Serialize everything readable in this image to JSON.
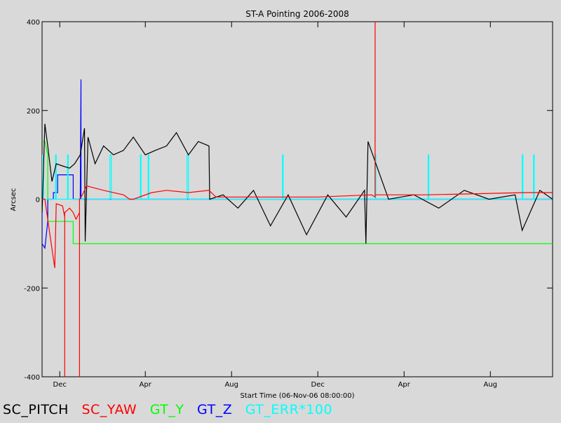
{
  "chart_data": {
    "type": "line",
    "title": "ST-A Pointing 2006-2008",
    "xlabel": "Start Time (06-Nov-06 08:00:00)",
    "ylabel": "Arcsec",
    "xlim": [
      "2006-11-06",
      "2008-10-28"
    ],
    "ylim": [
      -400,
      400
    ],
    "yticks": [
      -400,
      -200,
      0,
      200,
      400
    ],
    "xticks": [
      {
        "date": "2006-12-01",
        "label": "Dec"
      },
      {
        "date": "2007-04-01",
        "label": "Apr"
      },
      {
        "date": "2007-08-01",
        "label": "Aug"
      },
      {
        "date": "2007-12-01",
        "label": "Dec"
      },
      {
        "date": "2008-04-01",
        "label": "Apr"
      },
      {
        "date": "2008-08-01",
        "label": "Aug"
      }
    ],
    "grid": false,
    "legend_position": "bottom",
    "background": "#d9d9d9",
    "series": [
      {
        "name": "GT_Y",
        "color": "#00ff00",
        "x": [
          "2006-11-06",
          "2006-11-10",
          "2006-11-14",
          "2006-11-14",
          "2006-12-20",
          "2006-12-20",
          "2007-01-06",
          "2007-01-06",
          "2008-10-28"
        ],
        "y": [
          130,
          130,
          100,
          -50,
          -50,
          -100,
          -100,
          -100,
          -100
        ]
      },
      {
        "name": "GT_Z",
        "color": "#0000ff",
        "x": [
          "2006-11-06",
          "2006-11-06",
          "2006-11-10",
          "2006-11-14",
          "2006-11-14",
          "2006-11-22",
          "2006-11-22",
          "2006-11-28",
          "2006-11-28",
          "2006-12-20",
          "2006-12-20",
          "2006-12-30",
          "2006-12-31",
          "2006-12-31",
          "2007-01-02",
          "2007-01-02",
          "2008-10-28"
        ],
        "y": [
          -20,
          -100,
          -110,
          -50,
          0,
          0,
          15,
          15,
          55,
          55,
          0,
          0,
          270,
          0,
          0,
          0,
          0
        ]
      },
      {
        "name": "GT_ERR*100",
        "color": "#00ffff",
        "x": [
          "2006-11-06",
          "2006-11-06",
          "2006-11-08",
          "2006-11-08",
          "2006-11-25",
          "2006-11-25",
          "2006-11-26",
          "2006-11-26",
          "2006-12-12",
          "2006-12-12",
          "2006-12-13",
          "2006-12-13",
          "2007-02-10",
          "2007-02-10",
          "2007-02-12",
          "2007-02-12",
          "2007-03-25",
          "2007-03-25",
          "2007-03-26",
          "2007-03-26",
          "2007-04-05",
          "2007-04-05",
          "2007-04-06",
          "2007-04-06",
          "2007-05-30",
          "2007-05-30",
          "2007-06-01",
          "2007-06-01",
          "2007-07-01",
          "2007-07-01",
          "2007-10-12",
          "2007-10-12",
          "2007-10-13",
          "2007-10-13",
          "2008-02-20",
          "2008-02-20",
          "2008-02-21",
          "2008-02-21",
          "2008-05-05",
          "2008-05-05",
          "2008-05-06",
          "2008-05-06",
          "2008-09-15",
          "2008-09-15",
          "2008-09-16",
          "2008-09-16",
          "2008-10-01",
          "2008-10-01",
          "2008-10-02",
          "2008-10-02",
          "2008-10-28"
        ],
        "y": [
          0,
          100,
          100,
          0,
          0,
          100,
          100,
          0,
          0,
          100,
          100,
          0,
          0,
          100,
          100,
          0,
          0,
          100,
          100,
          0,
          0,
          100,
          100,
          0,
          0,
          100,
          100,
          0,
          0,
          0,
          0,
          100,
          100,
          0,
          0,
          100,
          100,
          0,
          0,
          100,
          100,
          0,
          0,
          100,
          100,
          0,
          0,
          100,
          100,
          0,
          0
        ]
      },
      {
        "name": "SC_PITCH",
        "color": "#000000",
        "x": [
          "2006-11-06",
          "2006-11-10",
          "2006-11-14",
          "2006-11-20",
          "2006-11-26",
          "2006-12-05",
          "2006-12-15",
          "2006-12-22",
          "2006-12-30",
          "2007-01-05",
          "2007-01-06",
          "2007-01-10",
          "2007-01-20",
          "2007-02-01",
          "2007-02-15",
          "2007-03-01",
          "2007-03-15",
          "2007-04-01",
          "2007-04-15",
          "2007-05-01",
          "2007-05-15",
          "2007-06-01",
          "2007-06-15",
          "2007-06-30",
          "2007-07-01",
          "2007-07-20",
          "2007-08-10",
          "2007-09-01",
          "2007-09-25",
          "2007-10-20",
          "2007-11-15",
          "2007-12-15",
          "2008-01-10",
          "2008-02-05",
          "2008-02-07",
          "2008-02-10",
          "2008-03-10",
          "2008-04-15",
          "2008-05-20",
          "2008-06-25",
          "2008-07-30",
          "2008-09-05",
          "2008-09-15",
          "2008-10-10",
          "2008-10-28"
        ],
        "y": [
          -30,
          170,
          120,
          40,
          80,
          75,
          70,
          80,
          100,
          160,
          -95,
          140,
          80,
          120,
          100,
          110,
          140,
          100,
          110,
          120,
          150,
          100,
          130,
          120,
          0,
          10,
          -20,
          20,
          -60,
          10,
          -80,
          10,
          -40,
          20,
          -100,
          130,
          0,
          10,
          -20,
          20,
          0,
          10,
          -70,
          20,
          0
        ]
      },
      {
        "name": "SC_YAW",
        "color": "#ff0000",
        "x": [
          "2006-11-06",
          "2006-11-10",
          "2006-11-18",
          "2006-11-24",
          "2006-11-26",
          "2006-12-05",
          "2006-12-08",
          "2006-12-08",
          "2006-12-08",
          "2006-12-15",
          "2006-12-20",
          "2006-12-24",
          "2006-12-29",
          "2006-12-29",
          "2006-12-29",
          "2007-01-02",
          "2007-01-08",
          "2007-02-01",
          "2007-03-01",
          "2007-03-10",
          "2007-03-15",
          "2007-04-10",
          "2007-05-01",
          "2007-06-01",
          "2007-06-30",
          "2007-07-10",
          "2007-09-15",
          "2007-12-01",
          "2008-02-15",
          "2008-02-20",
          "2008-02-20",
          "2008-02-20",
          "2008-05-01",
          "2008-07-01",
          "2008-09-20",
          "2008-10-28"
        ],
        "y": [
          0,
          0,
          -90,
          -155,
          -10,
          -15,
          -40,
          -400,
          -30,
          -20,
          -30,
          -45,
          -30,
          -400,
          0,
          10,
          30,
          20,
          10,
          0,
          0,
          15,
          20,
          15,
          20,
          5,
          5,
          5,
          10,
          5,
          400,
          10,
          10,
          12,
          15,
          15
        ]
      }
    ]
  },
  "legend": [
    {
      "label": "SC_PITCH",
      "color": "#000000"
    },
    {
      "label": "SC_YAW",
      "color": "#ff0000"
    },
    {
      "label": "GT_Y",
      "color": "#00ff00"
    },
    {
      "label": "GT_Z",
      "color": "#0000ff"
    },
    {
      "label": "GT_ERR*100",
      "color": "#00ffff"
    }
  ]
}
